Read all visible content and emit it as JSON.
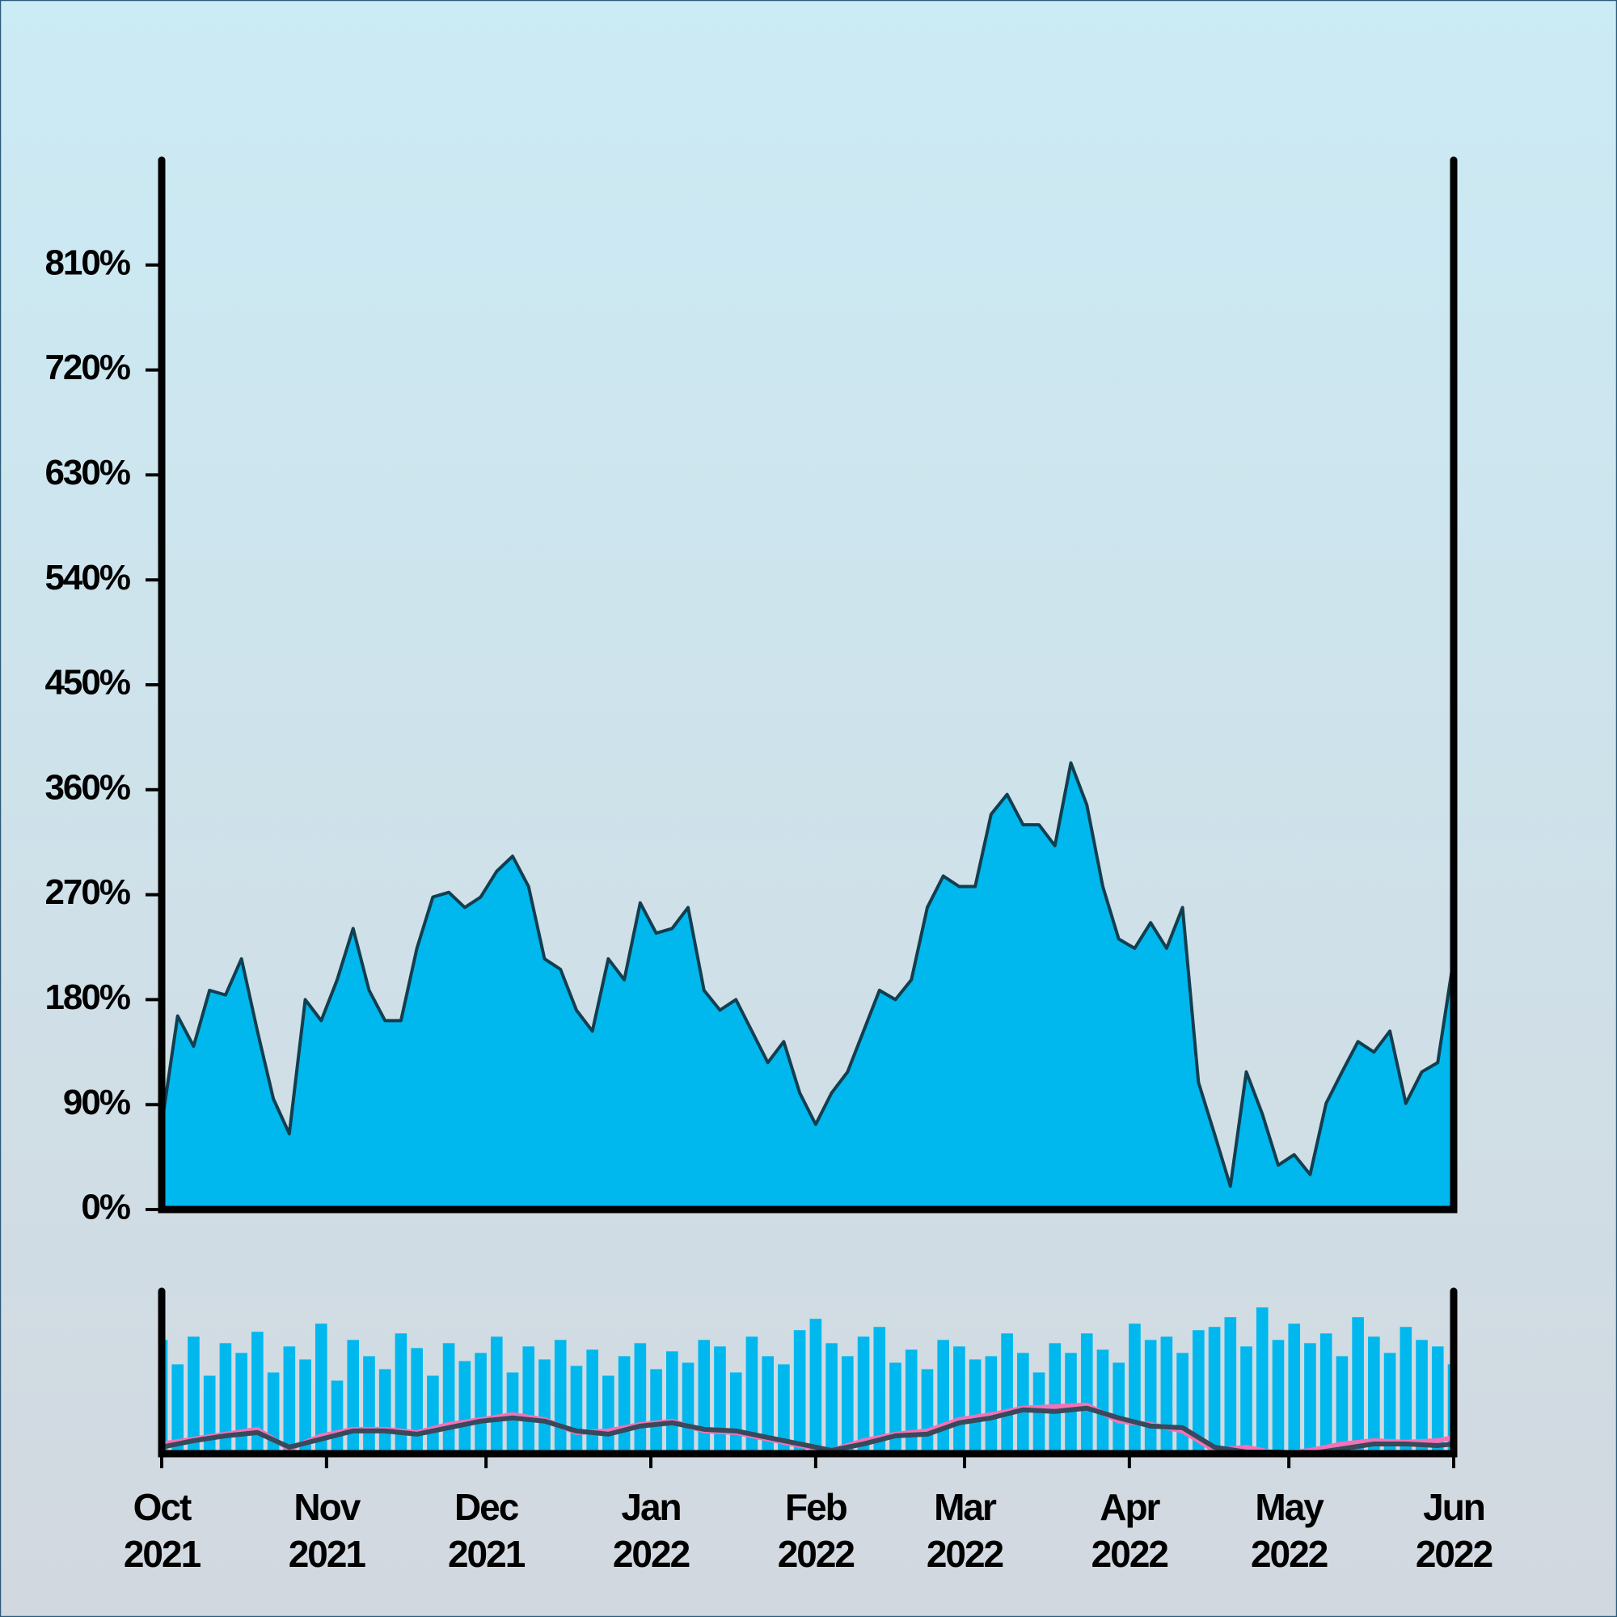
{
  "chart_data": [
    {
      "type": "area",
      "x": [
        0,
        3,
        6,
        9,
        12,
        15,
        18,
        21,
        24,
        27,
        30,
        33,
        36,
        39,
        42,
        45,
        48,
        51,
        54,
        57,
        60,
        63,
        66,
        69,
        72,
        75,
        78,
        81,
        84,
        87,
        90,
        93,
        96,
        99,
        102,
        105,
        108,
        111,
        114,
        117,
        120,
        123,
        126,
        129,
        132,
        135,
        138,
        141,
        144,
        147,
        150,
        153,
        156,
        159,
        162,
        165,
        168,
        171,
        174,
        177,
        180,
        183,
        186,
        189,
        192,
        195,
        198,
        201,
        204,
        207,
        210,
        213,
        216,
        219,
        222,
        225,
        228,
        231,
        234,
        237,
        240,
        243
      ],
      "values": [
        73,
        166,
        140,
        188,
        184,
        215,
        153,
        95,
        65,
        180,
        162,
        197,
        241,
        188,
        162,
        162,
        224,
        268,
        272,
        259,
        268,
        290,
        303,
        277,
        215,
        206,
        171,
        153,
        215,
        197,
        263,
        237,
        241,
        259,
        188,
        171,
        180,
        153,
        126,
        144,
        100,
        73,
        100,
        118,
        153,
        188,
        180,
        197,
        259,
        286,
        277,
        277,
        339,
        356,
        330,
        330,
        312,
        383,
        347,
        277,
        232,
        224,
        246,
        224,
        259,
        109,
        65,
        20,
        118,
        82,
        38,
        47,
        30,
        91,
        118,
        144,
        135,
        153,
        91,
        118,
        126,
        215
      ],
      "color": "#00b8ee",
      "line_color": "#123f50",
      "xlim": [
        0,
        243
      ],
      "ylim": [
        0,
        900
      ],
      "yticks": [
        {
          "value": 0,
          "label": "0%"
        },
        {
          "value": 90,
          "label": "90%"
        },
        {
          "value": 180,
          "label": "180%"
        },
        {
          "value": 270,
          "label": "270%"
        },
        {
          "value": 360,
          "label": "360%"
        },
        {
          "value": 450,
          "label": "450%"
        },
        {
          "value": 540,
          "label": "540%"
        },
        {
          "value": 630,
          "label": "630%"
        },
        {
          "value": 720,
          "label": "720%"
        },
        {
          "value": 810,
          "label": "810%"
        }
      ]
    },
    {
      "type": "bar",
      "x": [
        0,
        3,
        6,
        9,
        12,
        15,
        18,
        21,
        24,
        27,
        30,
        33,
        36,
        39,
        42,
        45,
        48,
        51,
        54,
        57,
        60,
        63,
        66,
        69,
        72,
        75,
        78,
        81,
        84,
        87,
        90,
        93,
        96,
        99,
        102,
        105,
        108,
        111,
        114,
        117,
        120,
        123,
        126,
        129,
        132,
        135,
        138,
        141,
        144,
        147,
        150,
        153,
        156,
        159,
        162,
        165,
        168,
        171,
        174,
        177,
        180,
        183,
        186,
        189,
        192,
        195,
        198,
        201,
        204,
        207,
        210,
        213,
        216,
        219,
        222,
        225,
        228,
        231,
        234,
        237,
        240,
        243
      ],
      "values": [
        70,
        55,
        72,
        48,
        68,
        62,
        75,
        50,
        66,
        58,
        80,
        45,
        70,
        60,
        52,
        74,
        65,
        48,
        68,
        57,
        62,
        72,
        50,
        66,
        58,
        70,
        54,
        64,
        48,
        60,
        68,
        52,
        63,
        56,
        70,
        66,
        50,
        72,
        60,
        55,
        76,
        83,
        68,
        60,
        72,
        78,
        56,
        64,
        52,
        70,
        66,
        58,
        60,
        74,
        62,
        50,
        68,
        62,
        74,
        64,
        56,
        80,
        70,
        72,
        62,
        76,
        78,
        84,
        66,
        90,
        70,
        80,
        68,
        74,
        60,
        84,
        72,
        62,
        78,
        70,
        66,
        55
      ],
      "color": "#00b8ee",
      "lines": [
        {
          "color": "#f472b6",
          "x": [
            0,
            6,
            12,
            18,
            24,
            30,
            36,
            42,
            48,
            54,
            60,
            66,
            72,
            78,
            84,
            90,
            96,
            102,
            108,
            114,
            120,
            126,
            132,
            138,
            144,
            150,
            156,
            162,
            168,
            174,
            180,
            186,
            192,
            198,
            204,
            210,
            216,
            222,
            228,
            234,
            240,
            243
          ],
          "values": [
            6,
            9,
            12,
            15,
            3,
            11,
            15,
            15,
            13,
            18,
            21,
            24,
            21,
            13,
            14,
            18,
            20,
            14,
            13,
            9,
            5,
            2,
            8,
            12,
            14,
            21,
            24,
            28,
            29,
            30,
            20,
            18,
            14,
            2,
            4,
            0,
            2,
            6,
            8,
            7,
            8,
            10
          ]
        },
        {
          "color": "#37495a",
          "x": [
            0,
            6,
            12,
            18,
            24,
            30,
            36,
            42,
            48,
            54,
            60,
            66,
            72,
            78,
            84,
            90,
            96,
            102,
            108,
            114,
            120,
            126,
            132,
            138,
            144,
            150,
            156,
            162,
            168,
            174,
            180,
            186,
            192,
            198,
            204,
            210,
            216,
            222,
            228,
            234,
            240,
            243
          ],
          "values": [
            4,
            8,
            11,
            13,
            4,
            9,
            14,
            14,
            12,
            16,
            20,
            22,
            20,
            14,
            12,
            17,
            19,
            15,
            14,
            10,
            6,
            2,
            6,
            11,
            12,
            19,
            22,
            27,
            26,
            28,
            22,
            17,
            16,
            4,
            1,
            1,
            0,
            3,
            6,
            6,
            5,
            6
          ]
        }
      ],
      "xlim": [
        0,
        243
      ],
      "ylim": [
        0,
        100
      ],
      "xticks": [
        {
          "value": 0,
          "label": [
            "Oct",
            "2021"
          ]
        },
        {
          "value": 31,
          "label": [
            "Nov",
            "2021"
          ]
        },
        {
          "value": 61,
          "label": [
            "Dec",
            "2021"
          ]
        },
        {
          "value": 92,
          "label": [
            "Jan",
            "2022"
          ]
        },
        {
          "value": 123,
          "label": [
            "Feb",
            "2022"
          ]
        },
        {
          "value": 151,
          "label": [
            "Mar",
            "2022"
          ]
        },
        {
          "value": 182,
          "label": [
            "Apr",
            "2022"
          ]
        },
        {
          "value": 212,
          "label": [
            "May",
            "2022"
          ]
        },
        {
          "value": 243,
          "label": [
            "Jun",
            "2022"
          ]
        }
      ]
    }
  ]
}
